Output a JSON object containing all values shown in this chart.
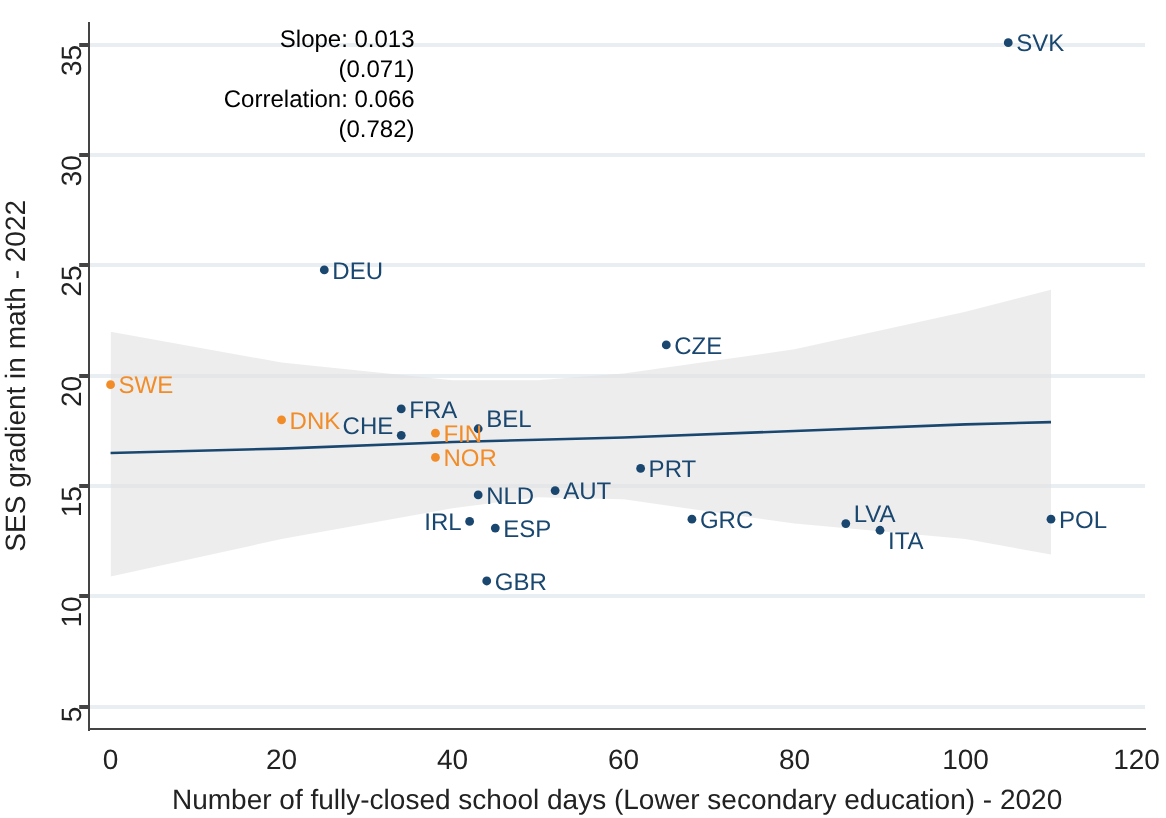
{
  "chart_data": {
    "type": "scatter",
    "xlabel": "Number of fully-closed school days (Lower secondary education) - 2020",
    "ylabel": "SES gradient in math - 2022",
    "xlim": [
      -2.5,
      121
    ],
    "xticks": [
      0,
      20,
      40,
      60,
      80,
      100,
      120
    ],
    "ylim": [
      4,
      36
    ],
    "yticks": [
      5,
      10,
      15,
      20,
      25,
      30,
      35
    ],
    "grid": "y",
    "legend": false,
    "marker": "circle",
    "series": [
      {
        "color": "#1a476f",
        "x": [
          25,
          34,
          34,
          43,
          43,
          52,
          42,
          45,
          44,
          62,
          65,
          68,
          86,
          90,
          110,
          105
        ],
        "values": [
          24.8,
          18.5,
          17.3,
          17.6,
          14.6,
          14.8,
          13.4,
          13.1,
          10.7,
          15.8,
          21.4,
          13.5,
          13.3,
          13.0,
          13.5,
          35.1
        ]
      },
      {
        "color": "#f28c28",
        "x": [
          0,
          20,
          38,
          38
        ],
        "values": [
          19.6,
          18.0,
          17.4,
          16.3
        ]
      },
      {
        "type": "line",
        "color": "#1a476f",
        "marker": "none",
        "line_style": "solid",
        "x": [
          0,
          20,
          40,
          50,
          60,
          80,
          100,
          110
        ],
        "values": [
          16.5,
          16.7,
          17.0,
          17.1,
          17.2,
          17.5,
          17.8,
          17.9
        ],
        "lower": [
          10.9,
          12.6,
          14.0,
          14.5,
          14.4,
          13.3,
          12.6,
          11.9
        ],
        "upper": [
          22.0,
          20.6,
          19.8,
          19.8,
          20.1,
          21.2,
          22.9,
          23.9
        ]
      }
    ],
    "annotations": [
      "Slope: 0.013",
      "(0.071)",
      "Correlation: 0.066",
      "(0.782)",
      {
        "text": "DEU",
        "x": 25,
        "y": 24.8
      },
      {
        "text": "FRA",
        "x": 34,
        "y": 18.5
      },
      {
        "text": "CHE",
        "x": 34,
        "y": 17.3
      },
      {
        "text": "BEL",
        "x": 43,
        "y": 17.6
      },
      {
        "text": "NLD",
        "x": 43,
        "y": 14.6
      },
      {
        "text": "AUT",
        "x": 52,
        "y": 14.8
      },
      {
        "text": "IRL",
        "x": 42,
        "y": 13.4
      },
      {
        "text": "ESP",
        "x": 45,
        "y": 13.1
      },
      {
        "text": "GBR",
        "x": 44,
        "y": 10.7
      },
      {
        "text": "PRT",
        "x": 62,
        "y": 15.8
      },
      {
        "text": "CZE",
        "x": 65,
        "y": 21.4
      },
      {
        "text": "GRC",
        "x": 68,
        "y": 13.5
      },
      {
        "text": "LVA",
        "x": 86,
        "y": 13.3
      },
      {
        "text": "ITA",
        "x": 90,
        "y": 13.0
      },
      {
        "text": "POL",
        "x": 110,
        "y": 13.5
      },
      {
        "text": "SVK",
        "x": 105,
        "y": 35.1
      },
      {
        "text": "SWE",
        "x": 0,
        "y": 19.6
      },
      {
        "text": "DNK",
        "x": 20,
        "y": 18.0
      },
      {
        "text": "FIN",
        "x": 38,
        "y": 17.4
      },
      {
        "text": "NOR",
        "x": 38,
        "y": 16.3
      }
    ]
  }
}
